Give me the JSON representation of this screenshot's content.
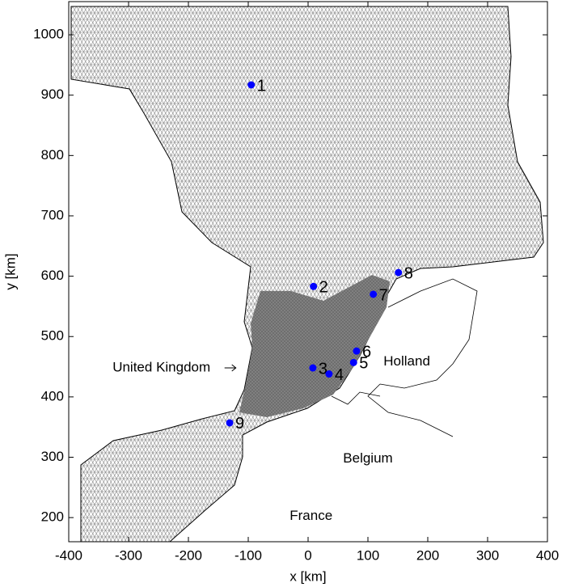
{
  "chart_data": {
    "type": "scatter",
    "xlabel": "x [km]",
    "ylabel": "y [km]",
    "x": [
      -95,
      9,
      8,
      35,
      76,
      81,
      109,
      151,
      -131
    ],
    "values": [
      917,
      583,
      448,
      438,
      457,
      476,
      570,
      606,
      357
    ],
    "point_labels": [
      "1",
      "2",
      "3",
      "4",
      "5",
      "6",
      "7",
      "8",
      "9"
    ],
    "color": "#0000ff",
    "xlim": [
      -400,
      400
    ],
    "ylim": [
      160,
      1055
    ],
    "xticks": [
      -400,
      -300,
      -200,
      -100,
      0,
      100,
      200,
      300,
      400
    ],
    "yticks": [
      200,
      300,
      400,
      500,
      600,
      700,
      800,
      900,
      1000
    ],
    "annotations": [
      {
        "text": "United Kingdom",
        "x": -245,
        "y": 448
      },
      {
        "text": "Holland",
        "x": 165,
        "y": 458
      },
      {
        "text": "Belgium",
        "x": 100,
        "y": 297
      },
      {
        "text": "France",
        "x": 5,
        "y": 202
      }
    ]
  }
}
